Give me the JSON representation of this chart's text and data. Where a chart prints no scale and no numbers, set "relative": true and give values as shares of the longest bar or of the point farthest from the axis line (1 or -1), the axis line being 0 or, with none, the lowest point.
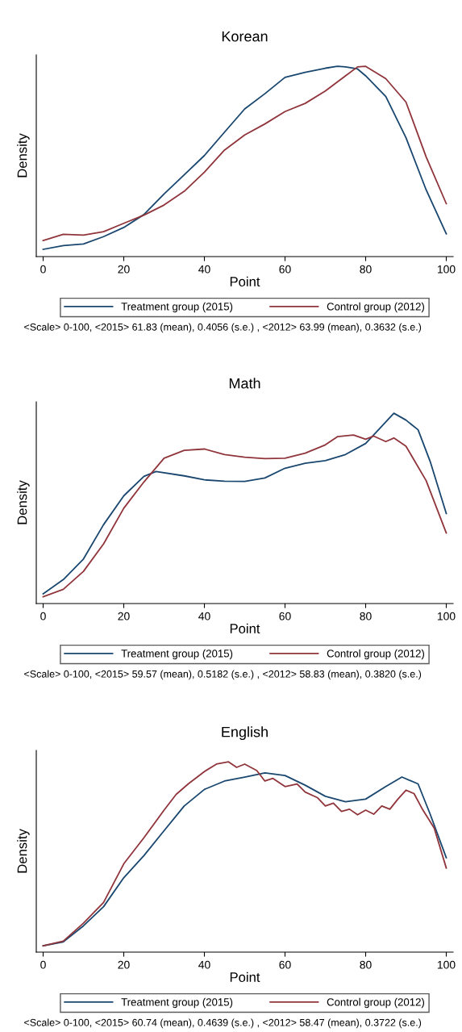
{
  "chart_data": [
    {
      "type": "line",
      "title": "Korean",
      "xlabel": "Point",
      "ylabel": "Density",
      "relative": true,
      "xlim": [
        -1.7,
        101.7
      ],
      "xticks": [
        0,
        20,
        40,
        60,
        80,
        100
      ],
      "grid": false,
      "legend": "bottom",
      "marker": "none",
      "line_style": "solid",
      "series": [
        {
          "name": "Treatment group (2015)",
          "color": "#1a476f",
          "x": [
            0,
            5,
            10,
            15,
            20,
            25,
            30,
            35,
            40,
            45,
            50,
            55,
            60,
            65,
            70,
            73,
            75,
            78,
            80,
            85,
            90,
            95,
            100
          ],
          "values": [
            0.038,
            0.058,
            0.066,
            0.105,
            0.153,
            0.221,
            0.329,
            0.43,
            0.531,
            0.654,
            0.776,
            0.856,
            0.942,
            0.968,
            0.99,
            1.0,
            0.997,
            0.986,
            0.95,
            0.841,
            0.625,
            0.351,
            0.12
          ]
        },
        {
          "name": "Control group (2012)",
          "color": "#90353b",
          "x": [
            0,
            5,
            10,
            15,
            20,
            25,
            30,
            35,
            40,
            45,
            50,
            55,
            60,
            65,
            70,
            75,
            78,
            80,
            85,
            90,
            95,
            100
          ],
          "values": [
            0.084,
            0.117,
            0.113,
            0.131,
            0.175,
            0.218,
            0.271,
            0.343,
            0.444,
            0.56,
            0.639,
            0.697,
            0.762,
            0.805,
            0.87,
            0.95,
            0.997,
            1.0,
            0.935,
            0.812,
            0.524,
            0.278
          ]
        }
      ],
      "annotations": [
        "<Scale> 0-100, <2015> 61.83 (mean), 0.4056 (s.e.) , <2012> 63.99 (mean), 0.3632 (s.e.)"
      ]
    },
    {
      "type": "line",
      "title": "Math",
      "xlabel": "Point",
      "ylabel": "Density",
      "relative": true,
      "xlim": [
        -1.7,
        101.7
      ],
      "xticks": [
        0,
        20,
        40,
        60,
        80,
        100
      ],
      "grid": false,
      "legend": "bottom",
      "marker": "none",
      "line_style": "solid",
      "series": [
        {
          "name": "Treatment group (2015)",
          "color": "#1a476f",
          "x": [
            0,
            5,
            10,
            15,
            20,
            25,
            28,
            35,
            40,
            45,
            50,
            55,
            60,
            65,
            70,
            75,
            80,
            83,
            87,
            90,
            93,
            96,
            100
          ],
          "values": [
            0.051,
            0.126,
            0.234,
            0.415,
            0.566,
            0.668,
            0.694,
            0.671,
            0.65,
            0.643,
            0.642,
            0.66,
            0.711,
            0.737,
            0.751,
            0.783,
            0.841,
            0.909,
            1.0,
            0.964,
            0.913,
            0.747,
            0.473
          ]
        },
        {
          "name": "Control group (2012)",
          "color": "#90353b",
          "x": [
            0,
            5,
            10,
            15,
            20,
            25,
            30,
            35,
            40,
            45,
            50,
            55,
            60,
            65,
            70,
            73,
            77,
            80,
            82,
            85,
            87,
            90,
            95,
            100
          ],
          "values": [
            0.036,
            0.075,
            0.169,
            0.314,
            0.501,
            0.639,
            0.764,
            0.805,
            0.812,
            0.783,
            0.769,
            0.762,
            0.764,
            0.79,
            0.834,
            0.877,
            0.886,
            0.863,
            0.88,
            0.851,
            0.87,
            0.827,
            0.646,
            0.371
          ]
        }
      ],
      "annotations": [
        "<Scale> 0-100, <2015> 59.57 (mean), 0.5182 (s.e.) , <2012> 58.83 (mean), 0.3820 (s.e.)"
      ]
    },
    {
      "type": "line",
      "title": "English",
      "xlabel": "Point",
      "ylabel": "Density",
      "relative": true,
      "xlim": [
        -1.7,
        101.7
      ],
      "xticks": [
        0,
        20,
        40,
        60,
        80,
        100
      ],
      "grid": false,
      "legend": "bottom",
      "marker": "none",
      "line_style": "solid",
      "series": [
        {
          "name": "Treatment group (2015)",
          "color": "#1a476f",
          "x": [
            0,
            5,
            10,
            15,
            20,
            25,
            30,
            35,
            40,
            45,
            50,
            55,
            60,
            65,
            70,
            75,
            80,
            85,
            89,
            93,
            96,
            100
          ],
          "values": [
            0.033,
            0.054,
            0.138,
            0.239,
            0.391,
            0.507,
            0.638,
            0.768,
            0.855,
            0.899,
            0.92,
            0.942,
            0.928,
            0.877,
            0.819,
            0.79,
            0.804,
            0.87,
            0.92,
            0.884,
            0.725,
            0.496
          ]
        },
        {
          "name": "Control group (2012)",
          "color": "#90353b",
          "x": [
            0,
            5,
            10,
            15,
            20,
            25,
            30,
            33,
            36,
            40,
            43,
            46,
            48,
            50,
            53,
            55,
            57,
            60,
            63,
            65,
            68,
            70,
            72,
            74,
            76,
            78,
            80,
            82,
            84,
            86,
            88,
            90,
            92,
            94,
            97,
            100
          ],
          "values": [
            0.033,
            0.058,
            0.152,
            0.261,
            0.464,
            0.601,
            0.746,
            0.829,
            0.884,
            0.949,
            0.988,
            1.0,
            0.971,
            0.988,
            0.954,
            0.899,
            0.913,
            0.87,
            0.884,
            0.841,
            0.812,
            0.768,
            0.783,
            0.739,
            0.751,
            0.722,
            0.746,
            0.725,
            0.768,
            0.751,
            0.804,
            0.851,
            0.833,
            0.754,
            0.652,
            0.442
          ]
        }
      ],
      "annotations": [
        "<Scale> 0-100, <2015> 60.74 (mean), 0.4639 (s.e.) , <2012> 58.47 (mean), 0.3722 (s.e.)"
      ]
    }
  ]
}
